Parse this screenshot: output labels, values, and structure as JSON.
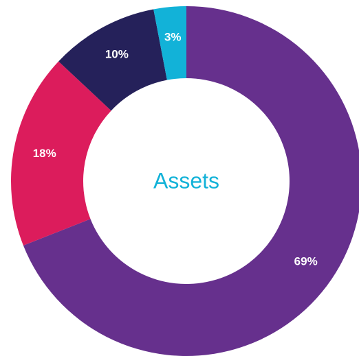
{
  "chart_data": {
    "type": "donut",
    "title": "Assets",
    "values": [
      69,
      18,
      10,
      3
    ],
    "value_labels": [
      "69%",
      "18%",
      "10%",
      "3%"
    ],
    "colors": [
      "#66308d",
      "#dc1c5c",
      "#25215a",
      "#12b2d8"
    ]
  }
}
